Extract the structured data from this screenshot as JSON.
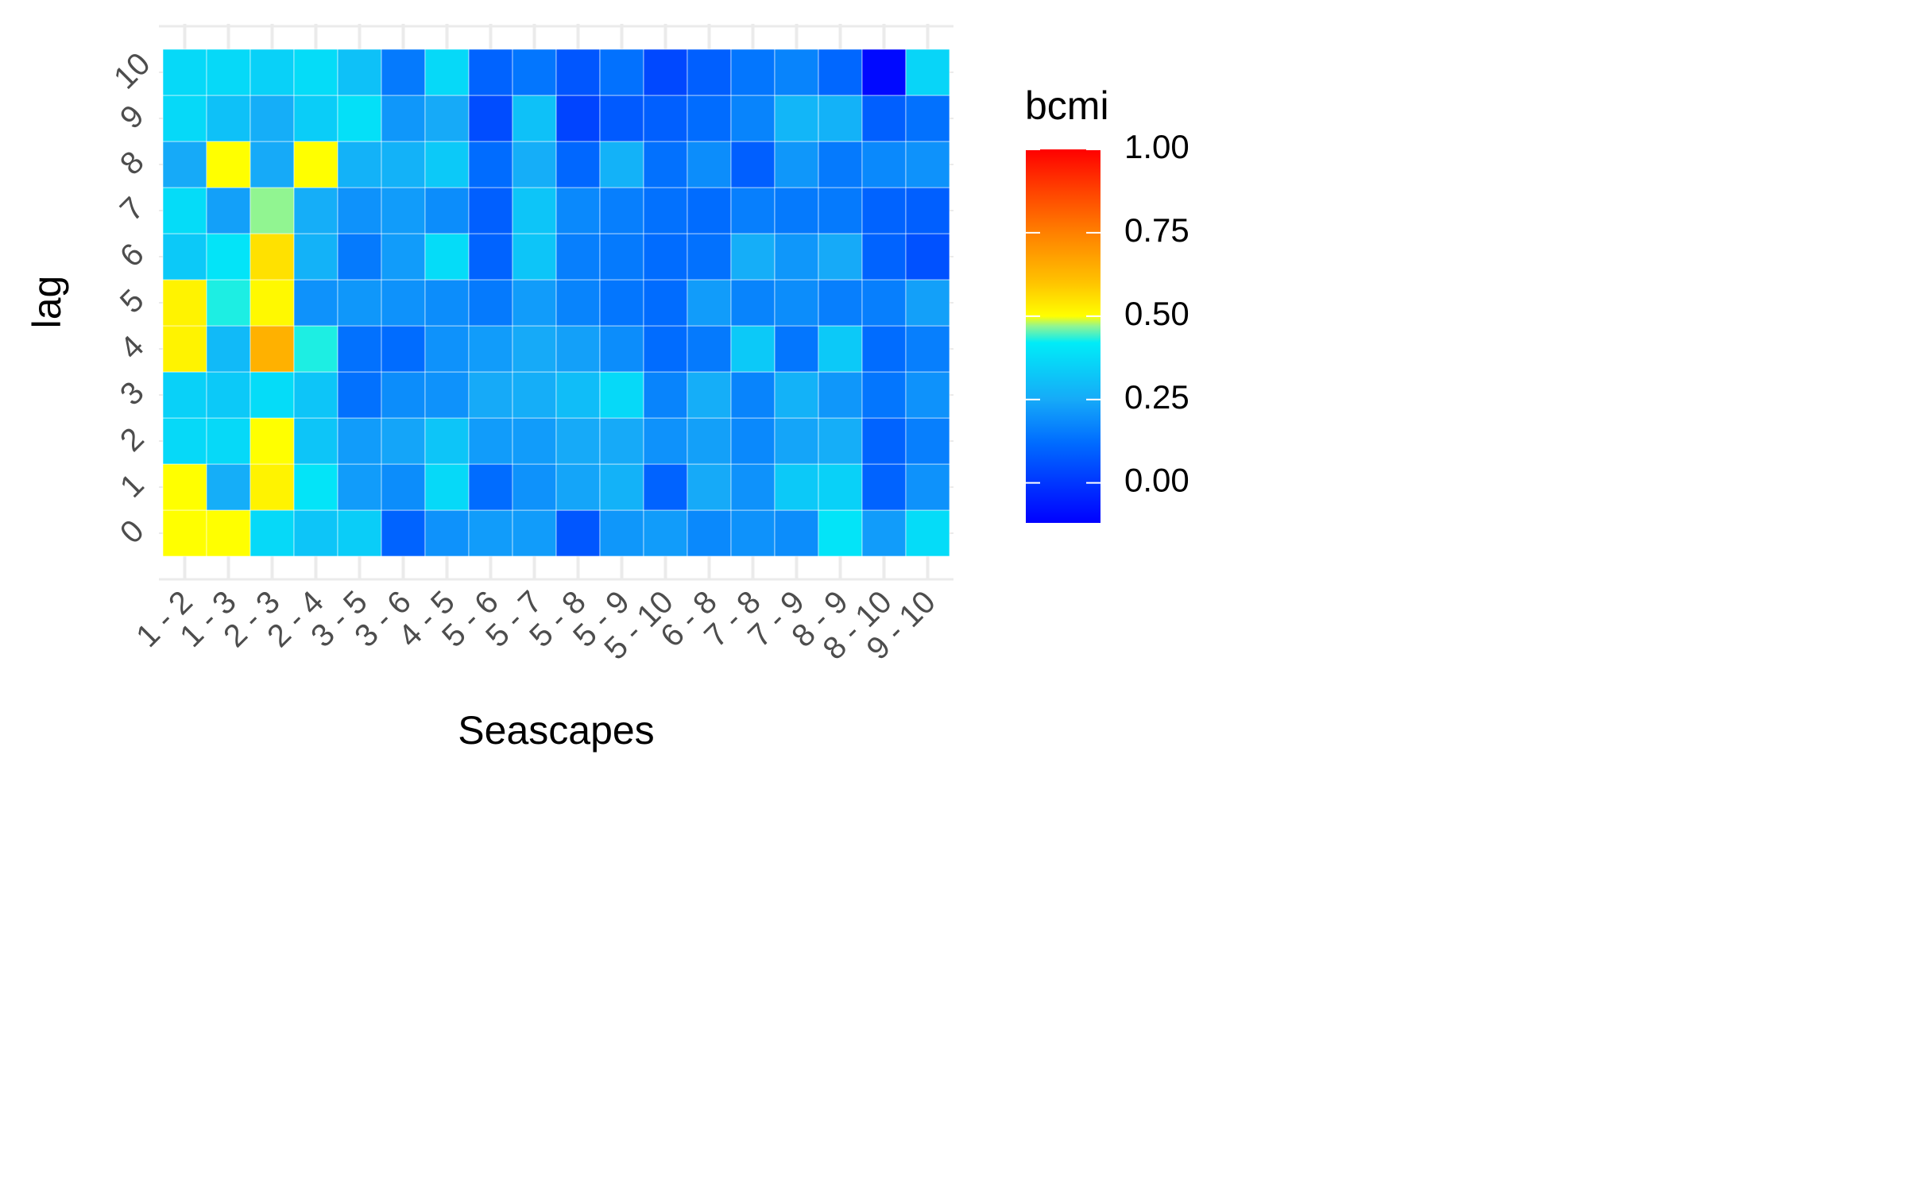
{
  "chart_data": {
    "type": "heatmap",
    "xlabel": "Seascapes",
    "ylabel": "lag",
    "x_categories": [
      "1 - 2",
      "1 - 3",
      "2 - 3",
      "2 - 4",
      "3 - 5",
      "3 - 6",
      "4 - 5",
      "5 - 6",
      "5 - 7",
      "5 - 8",
      "5 - 9",
      "5 - 10",
      "6 - 8",
      "7 - 8",
      "7 - 9",
      "8 - 9",
      "8 - 10",
      "9 - 10"
    ],
    "y_categories": [
      "0",
      "1",
      "2",
      "3",
      "4",
      "5",
      "6",
      "7",
      "8",
      "9",
      "10"
    ],
    "values": [
      [
        0.5,
        0.5,
        0.37,
        0.32,
        0.34,
        0.1,
        0.2,
        0.22,
        0.22,
        0.07,
        0.21,
        0.22,
        0.18,
        0.2,
        0.19,
        0.4,
        0.22,
        0.38
      ],
      [
        0.5,
        0.26,
        0.52,
        0.4,
        0.22,
        0.19,
        0.37,
        0.12,
        0.2,
        0.24,
        0.27,
        0.1,
        0.25,
        0.2,
        0.33,
        0.35,
        0.1,
        0.2
      ],
      [
        0.37,
        0.37,
        0.5,
        0.32,
        0.22,
        0.24,
        0.32,
        0.22,
        0.22,
        0.25,
        0.25,
        0.2,
        0.23,
        0.18,
        0.24,
        0.26,
        0.1,
        0.16
      ],
      [
        0.35,
        0.33,
        0.38,
        0.32,
        0.13,
        0.19,
        0.2,
        0.25,
        0.26,
        0.3,
        0.37,
        0.17,
        0.26,
        0.17,
        0.27,
        0.21,
        0.14,
        0.2
      ],
      [
        0.52,
        0.29,
        0.64,
        0.43,
        0.13,
        0.12,
        0.2,
        0.22,
        0.25,
        0.23,
        0.19,
        0.12,
        0.15,
        0.33,
        0.14,
        0.33,
        0.12,
        0.16
      ],
      [
        0.52,
        0.43,
        0.51,
        0.2,
        0.21,
        0.2,
        0.19,
        0.15,
        0.22,
        0.17,
        0.14,
        0.12,
        0.22,
        0.17,
        0.19,
        0.16,
        0.16,
        0.23
      ],
      [
        0.33,
        0.4,
        0.55,
        0.27,
        0.15,
        0.22,
        0.38,
        0.1,
        0.32,
        0.16,
        0.15,
        0.12,
        0.13,
        0.26,
        0.21,
        0.25,
        0.1,
        0.06
      ],
      [
        0.38,
        0.23,
        0.47,
        0.26,
        0.2,
        0.22,
        0.19,
        0.09,
        0.32,
        0.18,
        0.16,
        0.13,
        0.12,
        0.16,
        0.15,
        0.15,
        0.1,
        0.09
      ],
      [
        0.25,
        0.5,
        0.25,
        0.5,
        0.27,
        0.27,
        0.33,
        0.12,
        0.26,
        0.11,
        0.27,
        0.13,
        0.19,
        0.09,
        0.21,
        0.15,
        0.18,
        0.2
      ],
      [
        0.37,
        0.31,
        0.26,
        0.34,
        0.39,
        0.21,
        0.25,
        0.05,
        0.31,
        0.03,
        0.08,
        0.09,
        0.12,
        0.17,
        0.28,
        0.27,
        0.09,
        0.13
      ],
      [
        0.37,
        0.37,
        0.35,
        0.38,
        0.31,
        0.15,
        0.37,
        0.1,
        0.14,
        0.07,
        0.13,
        0.04,
        0.09,
        0.14,
        0.17,
        0.11,
        -0.1,
        0.36
      ]
    ],
    "legend": {
      "title": "bcmi",
      "position": "right",
      "ticks": [
        "1.00",
        "0.75",
        "0.50",
        "0.25",
        "0.00"
      ],
      "tick_values": [
        1.0,
        0.75,
        0.5,
        0.25,
        0.0
      ],
      "range": [
        -0.12,
        1.0
      ]
    },
    "colorscale": [
      {
        "v": -0.12,
        "c": "#0000ff"
      },
      {
        "v": 0.12,
        "c": "#006cff"
      },
      {
        "v": 0.25,
        "c": "#16aaf8"
      },
      {
        "v": 0.42,
        "c": "#00ecf8"
      },
      {
        "v": 0.47,
        "c": "#91f591"
      },
      {
        "v": 0.5,
        "c": "#ffff00"
      },
      {
        "v": 0.6,
        "c": "#ffc300"
      },
      {
        "v": 0.75,
        "c": "#ff8000"
      },
      {
        "v": 0.88,
        "c": "#ff4000"
      },
      {
        "v": 1.0,
        "c": "#ff0000"
      }
    ],
    "grid": true
  }
}
